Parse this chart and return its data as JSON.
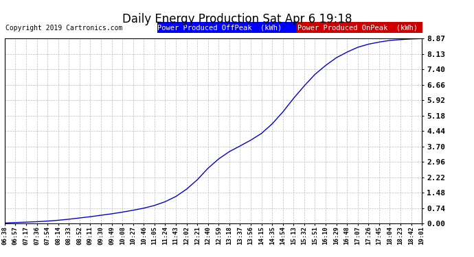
{
  "title": "Daily Energy Production Sat Apr 6 19:18",
  "copyright": "Copyright 2019 Cartronics.com",
  "legend_offpeak_label": "Power Produced OffPeak  (kWh)",
  "legend_onpeak_label": "Power Produced OnPeak  (kWh)",
  "legend_offpeak_bg": "#0000ff",
  "legend_onpeak_bg": "#cc0000",
  "line_color": "#0000cc",
  "bg_color": "#ffffff",
  "plot_bg_color": "#ffffff",
  "grid_color": "#bbbbbb",
  "ylim": [
    0.0,
    8.87
  ],
  "yticks": [
    0.0,
    0.74,
    1.48,
    2.22,
    2.96,
    3.7,
    4.44,
    5.18,
    5.92,
    6.66,
    7.4,
    8.13,
    8.87
  ],
  "xtick_labels": [
    "06:38",
    "06:57",
    "07:17",
    "07:36",
    "07:54",
    "08:14",
    "08:33",
    "08:52",
    "09:11",
    "09:30",
    "09:49",
    "10:08",
    "10:27",
    "10:46",
    "11:05",
    "11:24",
    "11:43",
    "12:02",
    "12:21",
    "12:40",
    "12:59",
    "13:18",
    "13:37",
    "13:56",
    "14:15",
    "14:35",
    "14:54",
    "15:13",
    "15:32",
    "15:51",
    "16:10",
    "16:29",
    "16:48",
    "17:07",
    "17:26",
    "17:45",
    "18:04",
    "18:23",
    "18:42",
    "19:01"
  ],
  "data_values": [
    0.03,
    0.05,
    0.07,
    0.09,
    0.12,
    0.16,
    0.21,
    0.27,
    0.33,
    0.4,
    0.47,
    0.55,
    0.64,
    0.74,
    0.87,
    1.05,
    1.3,
    1.65,
    2.1,
    2.65,
    3.1,
    3.45,
    3.72,
    4.0,
    4.32,
    4.78,
    5.35,
    6.0,
    6.6,
    7.15,
    7.58,
    7.95,
    8.22,
    8.45,
    8.6,
    8.7,
    8.78,
    8.82,
    8.85,
    8.87
  ],
  "fig_width": 6.9,
  "fig_height": 3.75,
  "fig_dpi": 100
}
